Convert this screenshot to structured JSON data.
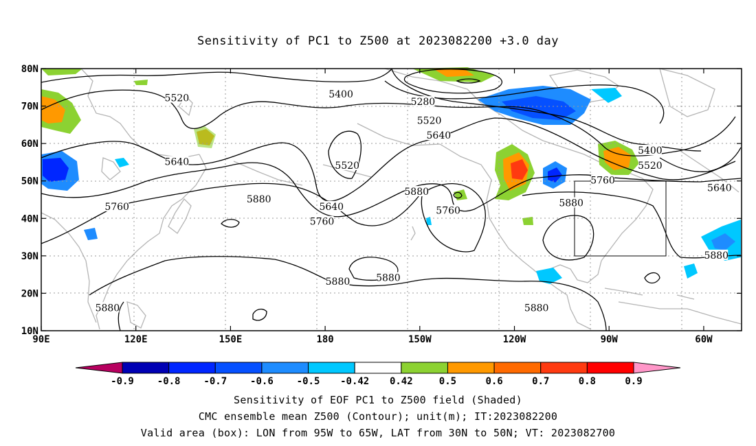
{
  "title": "Sensitivity of PC1 to Z500 at 2023082200 +3.0 day",
  "chart_data": {
    "type": "contour-map",
    "title": "Sensitivity of PC1 to Z500 at 2023082200 +3.0 day",
    "x_ticks": [
      "90E",
      "120E",
      "150E",
      "180",
      "150W",
      "120W",
      "90W",
      "60W"
    ],
    "y_ticks": [
      "80N",
      "70N",
      "60N",
      "50N",
      "40N",
      "30N",
      "20N",
      "10N"
    ],
    "xlim": [
      90,
      312
    ],
    "ylim": [
      10,
      80
    ],
    "grid": true,
    "contour_labels": [
      {
        "text": "5520",
        "lon": 133,
        "lat": 72
      },
      {
        "text": "5400",
        "lon": 185,
        "lat": 73
      },
      {
        "text": "5280",
        "lon": 211,
        "lat": 71
      },
      {
        "text": "5520",
        "lon": 213,
        "lat": 66
      },
      {
        "text": "5640",
        "lon": 216,
        "lat": 62
      },
      {
        "text": "5640",
        "lon": 133,
        "lat": 55
      },
      {
        "text": "5520",
        "lon": 187,
        "lat": 54
      },
      {
        "text": "5400",
        "lon": 283,
        "lat": 58
      },
      {
        "text": "5520",
        "lon": 283,
        "lat": 54
      },
      {
        "text": "5760",
        "lon": 268,
        "lat": 50
      },
      {
        "text": "5640",
        "lon": 305,
        "lat": 48
      },
      {
        "text": "5880",
        "lon": 209,
        "lat": 47
      },
      {
        "text": "5880",
        "lon": 159,
        "lat": 45
      },
      {
        "text": "5640",
        "lon": 182,
        "lat": 43
      },
      {
        "text": "5760",
        "lon": 114,
        "lat": 43
      },
      {
        "text": "5760",
        "lon": 179,
        "lat": 39
      },
      {
        "text": "5760",
        "lon": 219,
        "lat": 42
      },
      {
        "text": "5880",
        "lon": 258,
        "lat": 44
      },
      {
        "text": "5880",
        "lon": 304,
        "lat": 30
      },
      {
        "text": "5880",
        "lon": 184,
        "lat": 23
      },
      {
        "text": "5880",
        "lon": 200,
        "lat": 24
      },
      {
        "text": "5880",
        "lon": 111,
        "lat": 16
      },
      {
        "text": "5880",
        "lon": 247,
        "lat": 16
      }
    ],
    "colorbar": {
      "levels": [
        "-0.9",
        "-0.8",
        "-0.7",
        "-0.6",
        "-0.5",
        "-0.42",
        "0.42",
        "0.5",
        "0.6",
        "0.7",
        "0.8",
        "0.9"
      ],
      "colors": [
        "#b7005f",
        "#0000b4",
        "#0026ff",
        "#0550ff",
        "#1e8cff",
        "#00c8ff",
        "#ffffff",
        "#8cd232",
        "#ff9900",
        "#ff6a00",
        "#ff3a10",
        "#ff0000",
        "#ff96c8"
      ]
    },
    "valid_box": {
      "lon": [
        265,
        295
      ],
      "lat": [
        30,
        50
      ]
    }
  },
  "captions": {
    "line1": "Sensitivity of EOF PC1 to Z500 field (Shaded)",
    "line2": "CMC ensemble mean Z500 (Contour); unit(m); IT:2023082200",
    "line3": "Valid area (box): LON from 95W to 65W, LAT from 30N to 50N; VT: 2023082700"
  }
}
